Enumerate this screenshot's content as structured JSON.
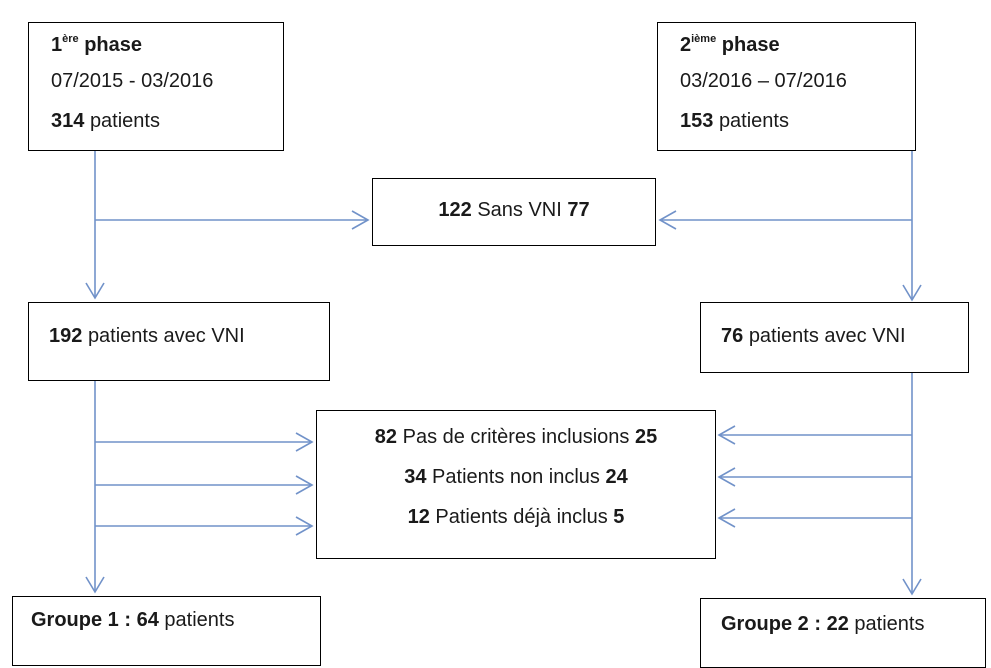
{
  "phase_1": {
    "ordinal": "1",
    "ordinal_suffix": "ère",
    "label": "phase",
    "period": "07/2015 - 03/2016",
    "count": 314,
    "count_label": "patients"
  },
  "phase_2": {
    "ordinal": "2",
    "ordinal_suffix": "ième",
    "label": "phase",
    "period": "03/2016 – 07/2016",
    "count": 153,
    "count_label": "patients"
  },
  "without_vni": {
    "count_1": 122,
    "label": "Sans VNI",
    "count_2": 77
  },
  "with_vni_1": {
    "count": 192,
    "label": "patients avec VNI"
  },
  "with_vni_2": {
    "count": 76,
    "label": "patients avec VNI"
  },
  "exclusions": [
    {
      "count_1": 82,
      "label": "Pas de critères inclusions",
      "count_2": 25
    },
    {
      "count_1": 34,
      "label": "Patients non inclus",
      "count_2": 24
    },
    {
      "count_1": 12,
      "label": "Patients déjà inclus",
      "count_2": 5
    }
  ],
  "group_1": {
    "label": "Groupe 1 :",
    "count": 64,
    "count_label": "patients"
  },
  "group_2": {
    "label": "Groupe 2 :",
    "count": 22,
    "count_label": "patients"
  }
}
